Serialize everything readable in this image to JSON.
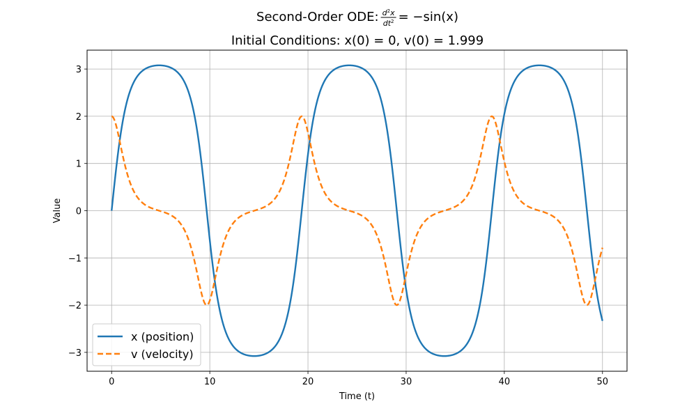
{
  "chart_data": {
    "type": "line",
    "title": {
      "line1_prefix": "Second-Order ODE: ",
      "line1_equation": {
        "num_d": "d",
        "num_sup": "2",
        "num_var": "x",
        "den_d": "dt",
        "den_sup": "2",
        "rhs": "= −sin(x)"
      },
      "line2": "Initial Conditions: x(0) = 0, v(0) = 1.999"
    },
    "xlabel": "Time (t)",
    "ylabel": "Value",
    "xlim": [
      -2.5,
      52.5
    ],
    "ylim": [
      -3.4,
      3.4
    ],
    "x_ticks": [
      0,
      10,
      20,
      30,
      40,
      50
    ],
    "y_ticks": [
      -3,
      -2,
      -1,
      0,
      1,
      2,
      3
    ],
    "x_tick_labels": [
      "0",
      "10",
      "20",
      "30",
      "40",
      "50"
    ],
    "y_tick_labels": [
      "−3",
      "−2",
      "−1",
      "0",
      "1",
      "2",
      "3"
    ],
    "grid": true,
    "legend_position": "lower-left",
    "ode": {
      "equation": "x'' = -sin(x)",
      "x0": 0,
      "v0": 1.999,
      "t_start": 0,
      "t_end": 50
    },
    "series": [
      {
        "name": "x (position)",
        "key": "x",
        "color": "#1f77b4",
        "style": "solid"
      },
      {
        "name": "v (velocity)",
        "key": "v",
        "color": "#ff7f0e",
        "style": "dashed"
      }
    ]
  }
}
